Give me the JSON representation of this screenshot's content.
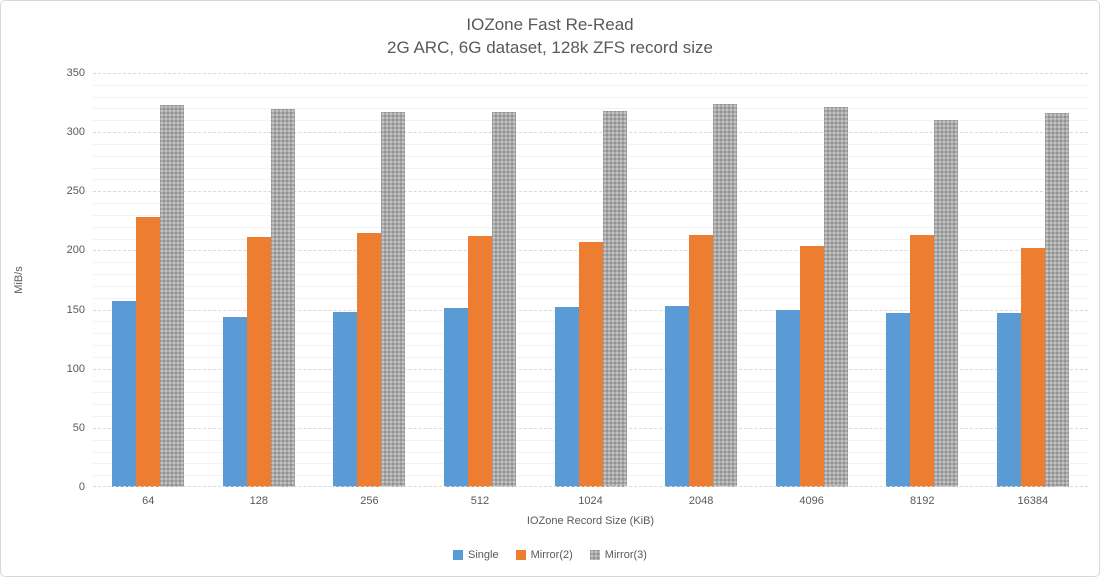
{
  "title": {
    "line1": "IOZone Fast Re-Read",
    "line2": "2G ARC, 6G dataset, 128k ZFS record size"
  },
  "chart_data": {
    "type": "bar",
    "title": "IOZone Fast Re-Read",
    "subtitle": "2G ARC, 6G dataset, 128k ZFS record size",
    "categories": [
      "64",
      "128",
      "256",
      "512",
      "1024",
      "2048",
      "4096",
      "8192",
      "16384"
    ],
    "series": [
      {
        "name": "Single",
        "color": "#5b9bd5",
        "pattern": "solid",
        "values": [
          157,
          144,
          148,
          151,
          152,
          153,
          150,
          147,
          147
        ]
      },
      {
        "name": "Mirror(2)",
        "color": "#ed7d31",
        "pattern": "solid",
        "values": [
          228,
          211,
          215,
          212,
          207,
          213,
          204,
          213,
          202
        ]
      },
      {
        "name": "Mirror(3)",
        "color": "#a9a9a9",
        "pattern": "stipple",
        "values": [
          323,
          320,
          317,
          317,
          318,
          324,
          321,
          310,
          316
        ]
      }
    ],
    "xlabel": "IOZone Record Size (KiB)",
    "ylabel": "MiB/s",
    "ylim": [
      0,
      350
    ],
    "ytick_interval": 50,
    "minor_tick_interval": 10,
    "grid": true,
    "legend_position": "bottom"
  },
  "colors": {
    "text": "#595959",
    "major_gridline": "#d9d9d9",
    "minor_gridline": "#f2f2f2",
    "border": "#d9d9d9"
  }
}
